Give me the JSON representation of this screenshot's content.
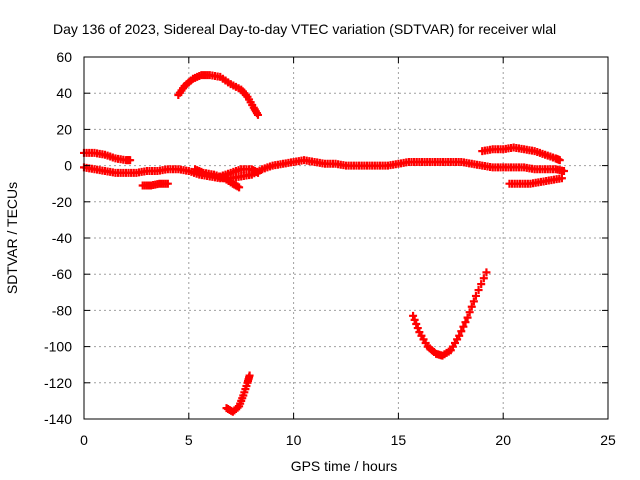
{
  "chart_data": {
    "type": "scatter",
    "title": "Day 136 of 2023, Sidereal Day-to-day VTEC variation (SDTVAR) for receiver wlal",
    "xlabel": "GPS time / hours",
    "ylabel": "SDTVAR / TECUs",
    "xlim": [
      0,
      25
    ],
    "ylim": [
      -140,
      60
    ],
    "xticks": [
      0,
      5,
      10,
      15,
      20,
      25
    ],
    "yticks": [
      -140,
      -120,
      -100,
      -80,
      -60,
      -40,
      -20,
      0,
      20,
      40,
      60
    ],
    "grid": true,
    "marker": "+",
    "color": "#ff0000",
    "series": [
      {
        "points": [
          [
            0,
            7
          ],
          [
            0.5,
            7
          ],
          [
            1,
            6
          ],
          [
            1.5,
            4
          ],
          [
            2,
            3
          ],
          [
            2.2,
            3
          ]
        ]
      },
      {
        "points": [
          [
            0,
            -1
          ],
          [
            0.5,
            -2
          ],
          [
            1,
            -3
          ],
          [
            1.5,
            -4
          ],
          [
            2,
            -4
          ],
          [
            2.5,
            -4
          ],
          [
            3,
            -3
          ],
          [
            3.5,
            -3
          ],
          [
            4,
            -2
          ],
          [
            4.5,
            -2
          ],
          [
            5,
            -3
          ],
          [
            5.5,
            -5
          ],
          [
            6,
            -6
          ],
          [
            6.5,
            -7
          ],
          [
            7,
            -7
          ],
          [
            7.5,
            -6
          ],
          [
            8,
            -5
          ]
        ]
      },
      {
        "points": [
          [
            2.8,
            -11
          ],
          [
            3.2,
            -11
          ],
          [
            3.6,
            -10
          ],
          [
            4,
            -10
          ]
        ]
      },
      {
        "points": [
          [
            5.3,
            -2
          ],
          [
            5.7,
            -4
          ],
          [
            6.2,
            -5
          ],
          [
            6.7,
            -7
          ],
          [
            7.1,
            -10
          ],
          [
            7.4,
            -12
          ]
        ]
      },
      {
        "points": [
          [
            6.5,
            -6
          ],
          [
            7,
            -4
          ],
          [
            7.5,
            -2
          ],
          [
            8,
            -2
          ],
          [
            8.3,
            -4
          ]
        ]
      },
      {
        "points": [
          [
            4.5,
            39
          ],
          [
            4.8,
            44
          ],
          [
            5.2,
            48
          ],
          [
            5.6,
            50
          ],
          [
            6,
            50
          ],
          [
            6.5,
            49
          ],
          [
            7,
            45
          ],
          [
            7.5,
            42
          ],
          [
            7.8,
            38
          ],
          [
            8.1,
            32
          ],
          [
            8.3,
            28
          ]
        ]
      },
      {
        "points": [
          [
            6.8,
            -134
          ],
          [
            7.1,
            -136
          ],
          [
            7.4,
            -133
          ],
          [
            7.6,
            -127
          ],
          [
            7.8,
            -120
          ],
          [
            7.9,
            -116
          ]
        ]
      },
      {
        "points": [
          [
            8,
            -5
          ],
          [
            8.5,
            -2
          ],
          [
            9,
            0
          ],
          [
            9.5,
            1
          ],
          [
            10,
            2
          ],
          [
            10.5,
            3
          ],
          [
            11,
            2
          ],
          [
            11.5,
            1
          ],
          [
            12,
            1
          ],
          [
            12.5,
            0
          ],
          [
            13,
            0
          ],
          [
            13.5,
            0
          ],
          [
            14,
            0
          ],
          [
            14.5,
            0
          ],
          [
            15,
            1
          ],
          [
            15.5,
            2
          ],
          [
            16,
            2
          ],
          [
            16.5,
            2
          ],
          [
            17,
            2
          ],
          [
            17.5,
            2
          ],
          [
            18,
            2
          ],
          [
            18.5,
            1
          ],
          [
            19,
            0
          ],
          [
            19.5,
            -1
          ],
          [
            20,
            -1
          ],
          [
            20.5,
            -1
          ],
          [
            21,
            -1
          ],
          [
            21.5,
            -2
          ],
          [
            22,
            -2
          ],
          [
            22.5,
            -2
          ],
          [
            22.9,
            -3
          ]
        ]
      },
      {
        "points": [
          [
            15.7,
            -83
          ],
          [
            16,
            -92
          ],
          [
            16.4,
            -100
          ],
          [
            16.8,
            -104
          ],
          [
            17.1,
            -105
          ],
          [
            17.5,
            -102
          ],
          [
            17.9,
            -94
          ],
          [
            18.3,
            -84
          ],
          [
            18.7,
            -72
          ],
          [
            19.2,
            -59
          ]
        ]
      },
      {
        "points": [
          [
            19,
            8
          ],
          [
            19.5,
            9
          ],
          [
            20,
            9
          ],
          [
            20.5,
            10
          ],
          [
            21,
            9
          ],
          [
            21.5,
            8
          ],
          [
            22,
            6
          ],
          [
            22.5,
            4
          ],
          [
            22.7,
            3
          ]
        ]
      },
      {
        "points": [
          [
            20.3,
            -10
          ],
          [
            20.8,
            -10
          ],
          [
            21.3,
            -10
          ],
          [
            21.8,
            -9
          ],
          [
            22.3,
            -8
          ],
          [
            22.8,
            -7
          ]
        ]
      }
    ]
  }
}
